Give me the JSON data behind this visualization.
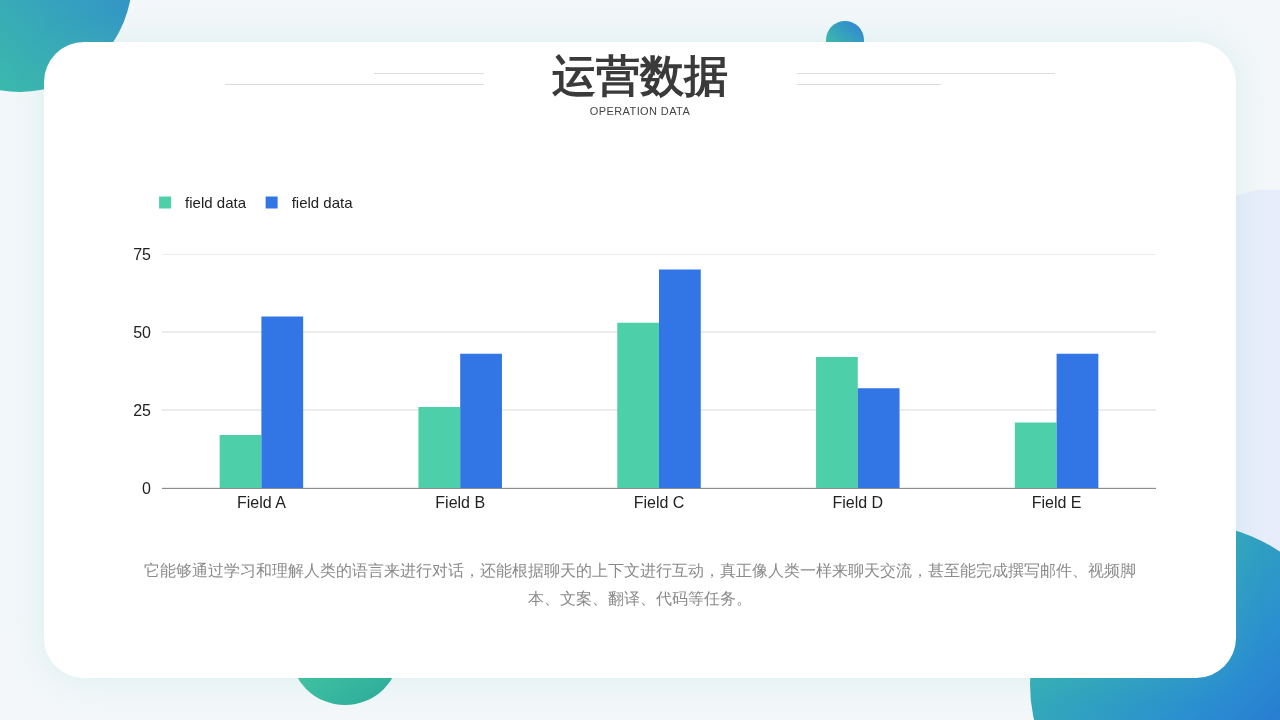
{
  "chart_data": {
    "type": "bar",
    "title": "运营数据",
    "subtitle": "OPERATION DATA",
    "categories": [
      "Field A",
      "Field B",
      "Field C",
      "Field D",
      "Field E"
    ],
    "series": [
      {
        "name": "field data",
        "color": "#4dcfaa",
        "values": [
          17,
          26,
          53,
          42,
          21
        ]
      },
      {
        "name": "field data",
        "color": "#3275e4",
        "values": [
          55,
          43,
          70,
          32,
          43
        ]
      }
    ],
    "ylim": [
      0,
      75
    ],
    "yticks": [
      0,
      25,
      50,
      75
    ],
    "grid": "y",
    "legend": "top left",
    "annotations": [
      "它能够通过学习和理解人类的语言来进行对话，还能根据聊天的上下文进行互动，真正像人类一样来聊天交流，甚至能完成撰写邮件、视频脚本、文案、翻译、代码等任务。"
    ]
  }
}
